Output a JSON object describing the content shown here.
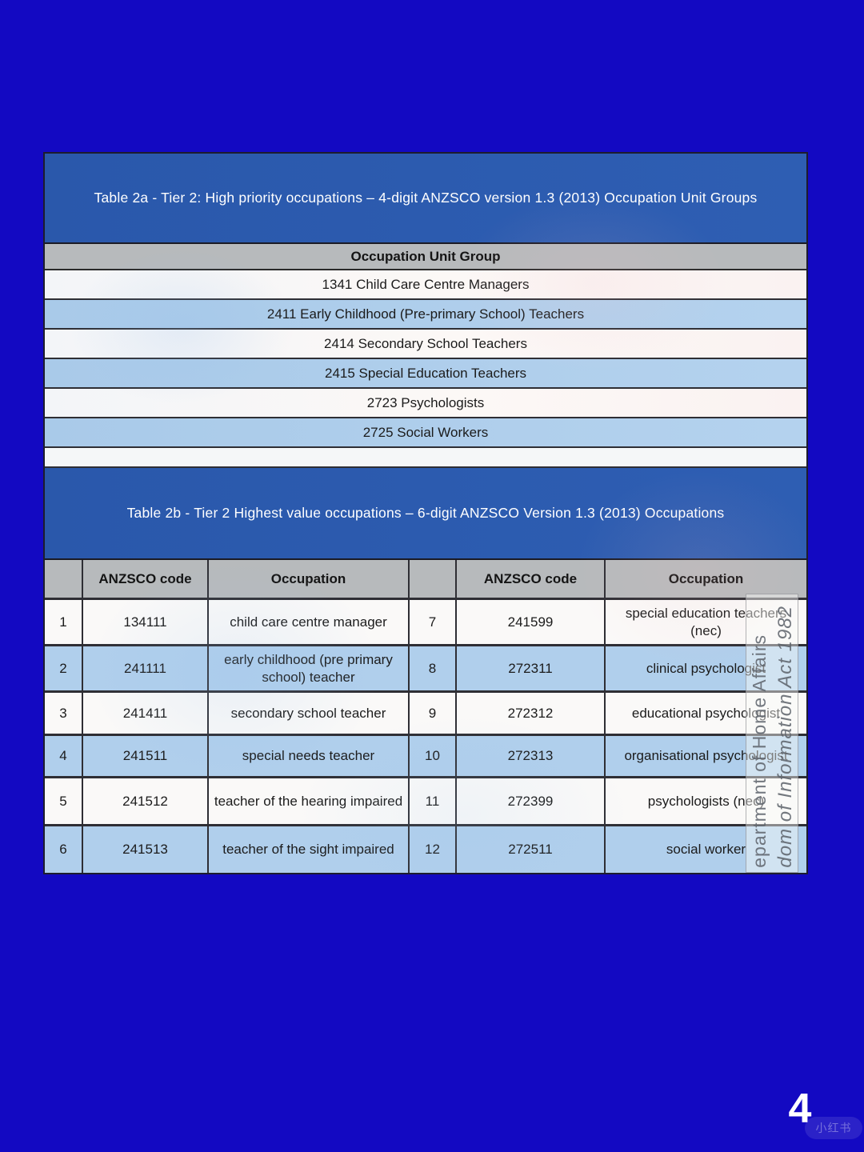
{
  "table2a": {
    "title": "Table 2a - Tier 2: High priority occupations – 4-digit ANZSCO version 1.3 (2013) Occupation Unit Groups",
    "header": "Occupation Unit Group",
    "rows": [
      "1341 Child Care Centre Managers",
      "2411 Early Childhood (Pre-primary School) Teachers",
      "2414 Secondary School Teachers",
      "2415 Special Education Teachers",
      "2723 Psychologists",
      "2725 Social Workers"
    ]
  },
  "table2b": {
    "title": "Table 2b - Tier 2 Highest value occupations – 6-digit ANZSCO Version 1.3 (2013) Occupations",
    "columns": [
      "",
      "ANZSCO code",
      "Occupation",
      "",
      "ANZSCO code",
      "Occupation"
    ],
    "rows": [
      [
        "1",
        "134111",
        "child care centre manager",
        "7",
        "241599",
        "special education teachers (nec)"
      ],
      [
        "2",
        "241111",
        "early childhood (pre primary school) teacher",
        "8",
        "272311",
        "clinical psychologist"
      ],
      [
        "3",
        "241411",
        "secondary school teacher",
        "9",
        "272312",
        "educational psychologist"
      ],
      [
        "4",
        "241511",
        "special needs teacher",
        "10",
        "272313",
        "organisational psychologist"
      ],
      [
        "5",
        "241512",
        "teacher of the hearing impaired",
        "11",
        "272399",
        "psychologists (nec)"
      ],
      [
        "6",
        "241513",
        "teacher of the sight impaired",
        "12",
        "272511",
        "social worker"
      ]
    ]
  },
  "watermark": {
    "line1": "epartment of Home Affairs",
    "line2": "dom of Information Act 1982"
  },
  "page": {
    "number": "4",
    "brand": "小红书"
  },
  "colors": {
    "page_bg": "#1309C2",
    "title_band_blue": "#2B5AAD",
    "row_light_blue": "#AECDEB",
    "header_gray": "#B7BABC",
    "row_white": "#FAF9F8"
  }
}
